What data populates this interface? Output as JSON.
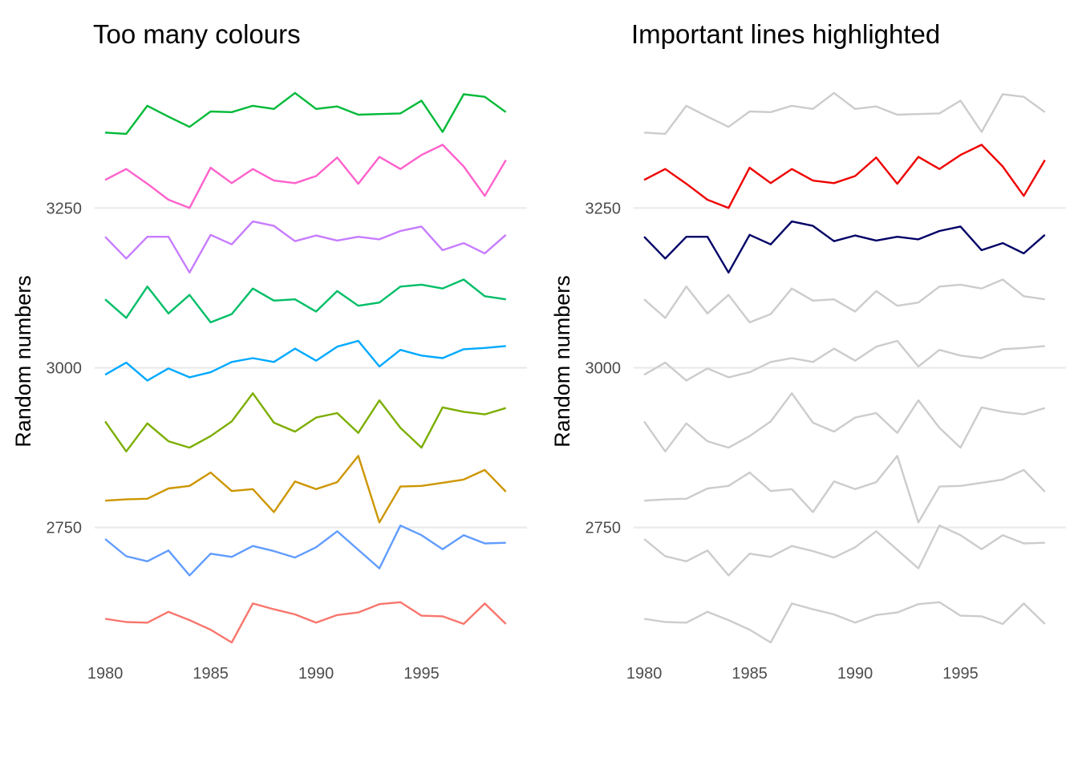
{
  "chart_data": [
    {
      "type": "line",
      "title": "Too many colours",
      "xlabel": "",
      "ylabel": "Random numbers",
      "x": [
        1980,
        1981,
        1982,
        1983,
        1984,
        1985,
        1986,
        1987,
        1988,
        1989,
        1990,
        1991,
        1992,
        1993,
        1994,
        1995,
        1996,
        1997,
        1998,
        1999
      ],
      "xticks": [
        "1980",
        "1985",
        "1990",
        "1995"
      ],
      "yticks": [
        "2750",
        "3000",
        "3250"
      ],
      "xlim": [
        1979.5,
        2000
      ],
      "ylim": [
        2565,
        3450
      ],
      "grid": "horizontal major only",
      "legend": "none",
      "series": [
        {
          "color": "#F8766D",
          "values": [
            2607,
            2602,
            2601,
            2618,
            2605,
            2590,
            2570,
            2631,
            2622,
            2614,
            2601,
            2613,
            2617,
            2630,
            2633,
            2612,
            2611,
            2599,
            2631,
            2599
          ]
        },
        {
          "color": "#619CFF",
          "values": [
            2732,
            2705,
            2697,
            2714,
            2675,
            2709,
            2704,
            2721,
            2713,
            2703,
            2719,
            2744,
            2715,
            2686,
            2753,
            2738,
            2716,
            2738,
            2725,
            2726
          ]
        },
        {
          "color": "#CD9600",
          "values": [
            2792,
            2794,
            2795,
            2811,
            2815,
            2836,
            2807,
            2810,
            2774,
            2822,
            2810,
            2821,
            2862,
            2758,
            2814,
            2815,
            2820,
            2825,
            2840,
            2806
          ]
        },
        {
          "color": "#7CAE00",
          "values": [
            2916,
            2869,
            2913,
            2885,
            2875,
            2893,
            2916,
            2960,
            2914,
            2900,
            2922,
            2929,
            2898,
            2949,
            2906,
            2875,
            2938,
            2931,
            2927,
            2937
          ]
        },
        {
          "color": "#00A9FF",
          "values": [
            2989,
            3008,
            2980,
            2999,
            2985,
            2993,
            3009,
            3015,
            3009,
            3030,
            3011,
            3033,
            3042,
            3002,
            3028,
            3019,
            3015,
            3029,
            3031,
            3034
          ]
        },
        {
          "color": "#00BE67",
          "values": [
            3107,
            3078,
            3127,
            3085,
            3114,
            3071,
            3084,
            3124,
            3105,
            3107,
            3088,
            3120,
            3097,
            3102,
            3127,
            3130,
            3124,
            3138,
            3112,
            3107
          ]
        },
        {
          "color": "#C77CFF",
          "values": [
            3205,
            3171,
            3205,
            3205,
            3149,
            3208,
            3193,
            3229,
            3222,
            3198,
            3207,
            3199,
            3205,
            3201,
            3214,
            3221,
            3184,
            3195,
            3179,
            3208
          ]
        },
        {
          "color": "#FF61CC",
          "values": [
            3294,
            3311,
            3288,
            3263,
            3250,
            3313,
            3289,
            3311,
            3293,
            3289,
            3300,
            3329,
            3288,
            3330,
            3311,
            3333,
            3349,
            3315,
            3269,
            3325
          ]
        },
        {
          "color": "#00BA38",
          "values": [
            3368,
            3366,
            3410,
            3393,
            3377,
            3401,
            3400,
            3410,
            3405,
            3430,
            3405,
            3409,
            3396,
            3397,
            3398,
            3418,
            3369,
            3428,
            3424,
            3400
          ]
        }
      ]
    },
    {
      "type": "line",
      "title": "Important lines highlighted",
      "xlabel": "",
      "ylabel": "Random numbers",
      "x": [
        1980,
        1981,
        1982,
        1983,
        1984,
        1985,
        1986,
        1987,
        1988,
        1989,
        1990,
        1991,
        1992,
        1993,
        1994,
        1995,
        1996,
        1997,
        1998,
        1999
      ],
      "xticks": [
        "1980",
        "1985",
        "1990",
        "1995"
      ],
      "yticks": [
        "2750",
        "3000",
        "3250"
      ],
      "xlim": [
        1979.5,
        2000
      ],
      "ylim": [
        2565,
        3450
      ],
      "grid": "horizontal major only",
      "legend": "none",
      "series": [
        {
          "color": "#cccccc",
          "values": [
            2607,
            2602,
            2601,
            2618,
            2605,
            2590,
            2570,
            2631,
            2622,
            2614,
            2601,
            2613,
            2617,
            2630,
            2633,
            2612,
            2611,
            2599,
            2631,
            2599
          ]
        },
        {
          "color": "#cccccc",
          "values": [
            2732,
            2705,
            2697,
            2714,
            2675,
            2709,
            2704,
            2721,
            2713,
            2703,
            2719,
            2744,
            2715,
            2686,
            2753,
            2738,
            2716,
            2738,
            2725,
            2726
          ]
        },
        {
          "color": "#cccccc",
          "values": [
            2792,
            2794,
            2795,
            2811,
            2815,
            2836,
            2807,
            2810,
            2774,
            2822,
            2810,
            2821,
            2862,
            2758,
            2814,
            2815,
            2820,
            2825,
            2840,
            2806
          ]
        },
        {
          "color": "#cccccc",
          "values": [
            2916,
            2869,
            2913,
            2885,
            2875,
            2893,
            2916,
            2960,
            2914,
            2900,
            2922,
            2929,
            2898,
            2949,
            2906,
            2875,
            2938,
            2931,
            2927,
            2937
          ]
        },
        {
          "color": "#cccccc",
          "values": [
            2989,
            3008,
            2980,
            2999,
            2985,
            2993,
            3009,
            3015,
            3009,
            3030,
            3011,
            3033,
            3042,
            3002,
            3028,
            3019,
            3015,
            3029,
            3031,
            3034
          ]
        },
        {
          "color": "#cccccc",
          "values": [
            3107,
            3078,
            3127,
            3085,
            3114,
            3071,
            3084,
            3124,
            3105,
            3107,
            3088,
            3120,
            3097,
            3102,
            3127,
            3130,
            3124,
            3138,
            3112,
            3107
          ]
        },
        {
          "color": "#000066",
          "values": [
            3205,
            3171,
            3205,
            3205,
            3149,
            3208,
            3193,
            3229,
            3222,
            3198,
            3207,
            3199,
            3205,
            3201,
            3214,
            3221,
            3184,
            3195,
            3179,
            3208
          ]
        },
        {
          "color": "#ee0000",
          "values": [
            3294,
            3311,
            3288,
            3263,
            3250,
            3313,
            3289,
            3311,
            3293,
            3289,
            3300,
            3329,
            3288,
            3330,
            3311,
            3333,
            3349,
            3315,
            3269,
            3325
          ]
        },
        {
          "color": "#cccccc",
          "values": [
            3368,
            3366,
            3410,
            3393,
            3377,
            3401,
            3400,
            3410,
            3405,
            3430,
            3405,
            3409,
            3396,
            3397,
            3398,
            3418,
            3369,
            3428,
            3424,
            3400
          ]
        }
      ]
    }
  ]
}
